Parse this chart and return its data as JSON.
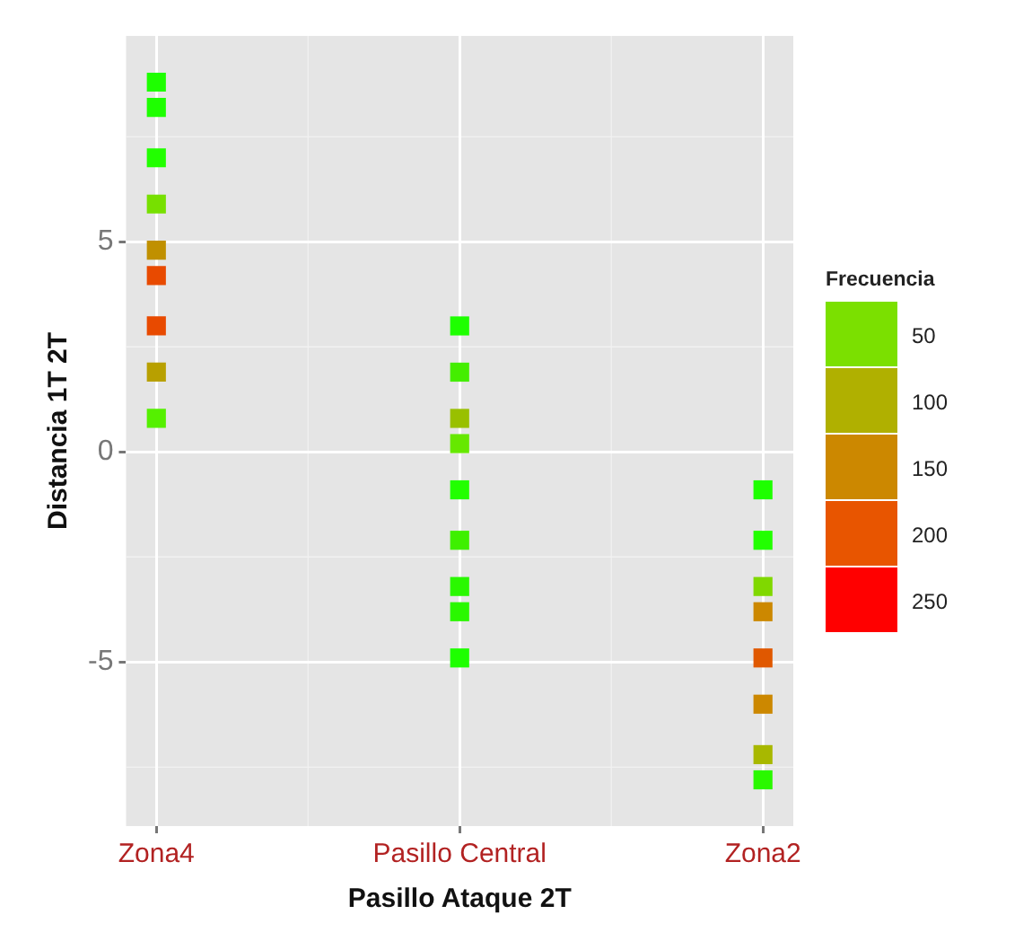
{
  "chart_data": {
    "type": "scatter",
    "xlabel": "Pasillo Ataque 2T",
    "ylabel": "Distancia 1T 2T",
    "clabel": "Frecuencia",
    "categories": [
      "Zona4",
      "Pasillo Central",
      "Zona2"
    ],
    "series": [
      {
        "x": [
          "Zona4",
          "Zona4",
          "Zona4",
          "Zona4",
          "Zona4",
          "Zona4",
          "Zona4",
          "Zona4",
          "Zona4"
        ],
        "values": [
          8.8,
          8.2,
          7.0,
          5.9,
          4.8,
          4.2,
          3.0,
          1.9,
          0.8
        ],
        "colors": [
          "#1eff00",
          "#1eff00",
          "#22ff00",
          "#77e000",
          "#c09000",
          "#e84a00",
          "#e84a00",
          "#b8a000",
          "#55f000"
        ]
      },
      {
        "x": [
          "Pasillo Central",
          "Pasillo Central",
          "Pasillo Central",
          "Pasillo Central",
          "Pasillo Central",
          "Pasillo Central",
          "Pasillo Central",
          "Pasillo Central",
          "Pasillo Central"
        ],
        "values": [
          3.0,
          1.9,
          0.8,
          0.2,
          -0.9,
          -2.1,
          -3.2,
          -3.8,
          -4.9
        ],
        "colors": [
          "#1eff00",
          "#44ee00",
          "#99c000",
          "#66e800",
          "#22ff00",
          "#3ef000",
          "#2af800",
          "#2af800",
          "#1eff00"
        ]
      },
      {
        "x": [
          "Zona2",
          "Zona2",
          "Zona2",
          "Zona2",
          "Zona2",
          "Zona2",
          "Zona2",
          "Zona2"
        ],
        "values": [
          -0.9,
          -2.1,
          -3.2,
          -3.8,
          -4.9,
          -6.0,
          -7.2,
          -7.8
        ],
        "colors": [
          "#1eff00",
          "#22ff00",
          "#80d800",
          "#cc8800",
          "#e05800",
          "#cc8800",
          "#a8b800",
          "#2af800"
        ]
      }
    ],
    "ylim": [
      -8.9,
      9.9
    ],
    "yticks": [
      -5,
      0,
      5
    ],
    "cticks": [
      50,
      100,
      150,
      200,
      250
    ],
    "grid": true,
    "marker": "square"
  }
}
